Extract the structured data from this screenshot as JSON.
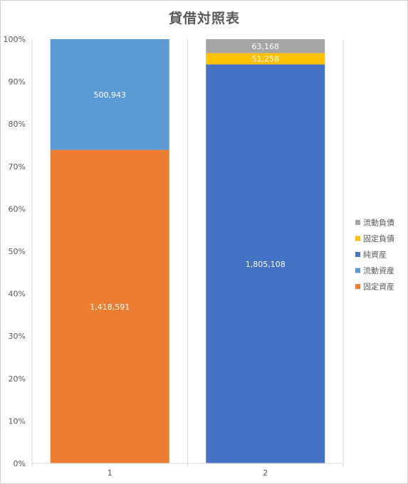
{
  "chart_data": {
    "type": "bar",
    "stacked": "percent",
    "title": "貸借対照表",
    "xlabel": "",
    "ylabel": "",
    "ylim": [
      0,
      100
    ],
    "y_ticks": [
      "0%",
      "10%",
      "20%",
      "30%",
      "40%",
      "50%",
      "60%",
      "70%",
      "80%",
      "90%",
      "100%"
    ],
    "categories": [
      "1",
      "2"
    ],
    "series": [
      {
        "name": "固定資産",
        "values": [
          1418591,
          0
        ],
        "labels": [
          "1,418,591",
          ""
        ],
        "color": "#ED7D31"
      },
      {
        "name": "流動資産",
        "values": [
          500943,
          0
        ],
        "labels": [
          "500,943",
          ""
        ],
        "color": "#5B9BD5"
      },
      {
        "name": "純資産",
        "values": [
          0,
          1805108
        ],
        "labels": [
          "",
          "1,805,108"
        ],
        "color": "#4472C4"
      },
      {
        "name": "固定負債",
        "values": [
          0,
          51258
        ],
        "labels": [
          "",
          "51,258"
        ],
        "color": "#FFC000"
      },
      {
        "name": "流動負債",
        "values": [
          0,
          63168
        ],
        "labels": [
          "",
          "63,168"
        ],
        "color": "#A5A5A5"
      }
    ],
    "legend_order": [
      "流動負債",
      "固定負債",
      "純資産",
      "流動資産",
      "固定資産"
    ],
    "legend_position": "right",
    "grid": false
  }
}
